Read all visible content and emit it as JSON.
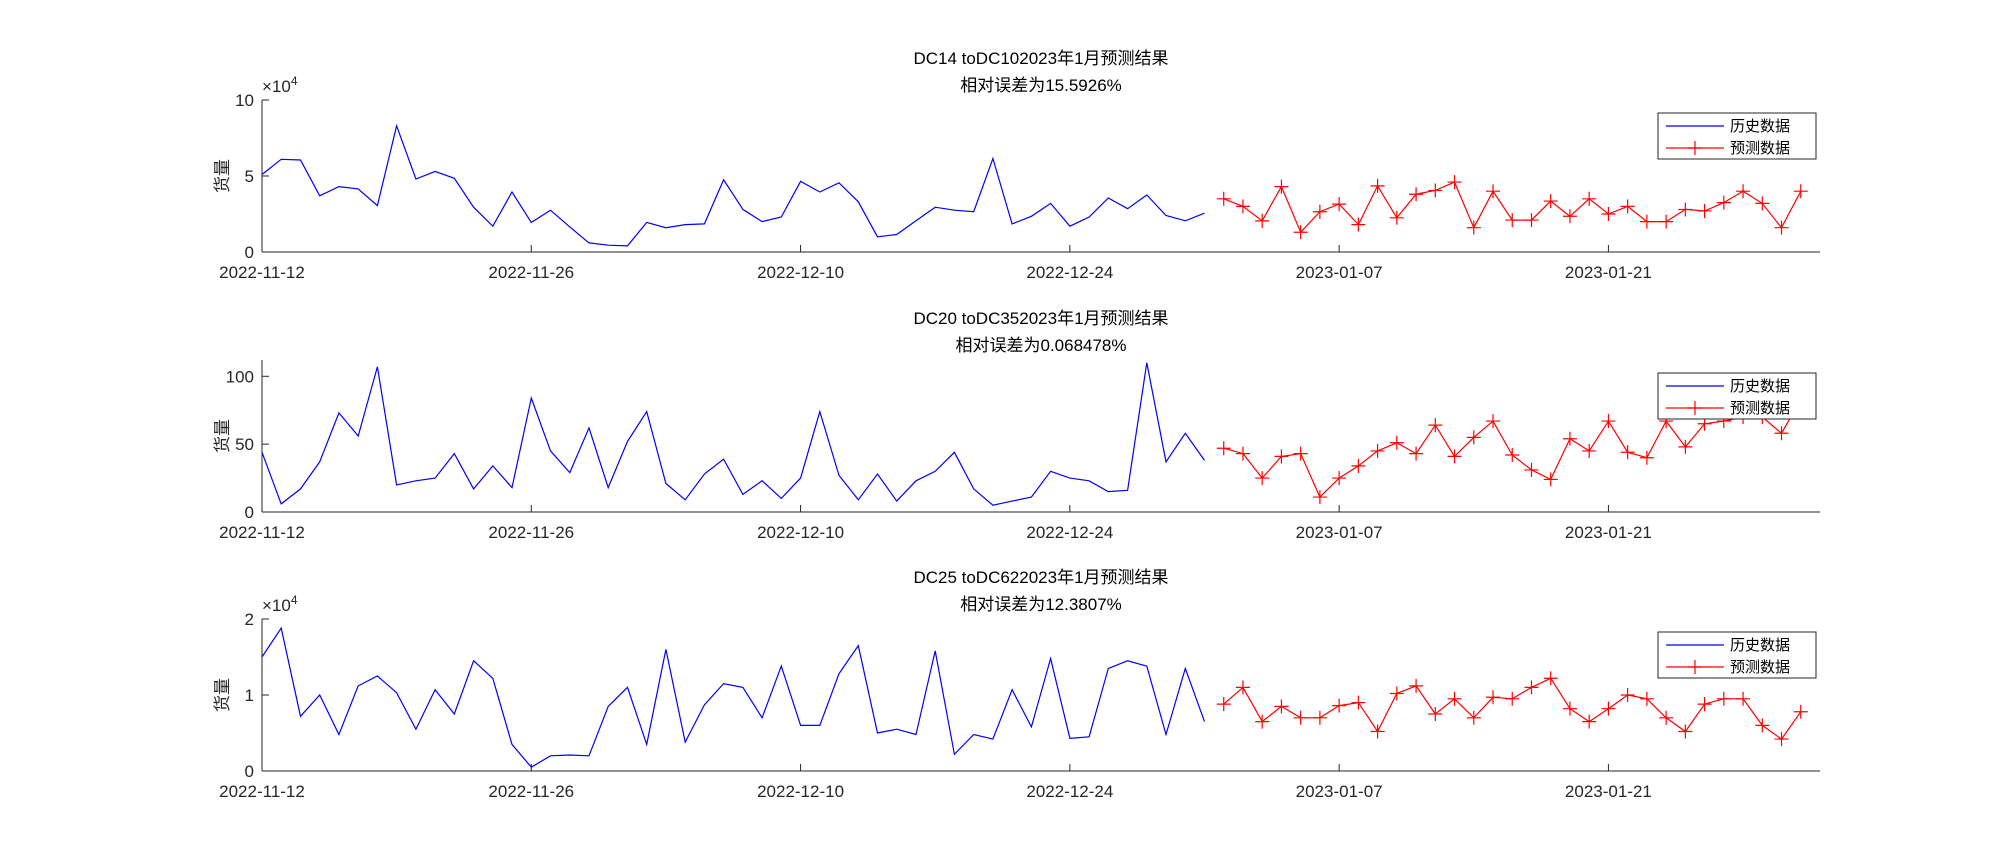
{
  "chart_data": [
    {
      "type": "line",
      "title": "DC14 toDC102023年1月预测结果",
      "subtitle": "相对误差为15.5926%",
      "ylabel": "货量",
      "exponent_label": "×10",
      "exponent_power": "4",
      "x_domain": [
        "2022-11-12",
        "2023-02-01"
      ],
      "xticks": [
        "2022-11-12",
        "2022-11-26",
        "2022-12-10",
        "2022-12-24",
        "2023-01-07",
        "2023-01-21"
      ],
      "yticks": [
        0,
        5,
        10
      ],
      "ylim": [
        0,
        10
      ],
      "legend": [
        "历史数据",
        "预测数据"
      ],
      "legend_position": "top-right",
      "series": [
        {
          "name": "历史数据",
          "color": "#0000ff",
          "marker": "none",
          "start": "2022-11-12",
          "values": [
            5.1,
            6.1,
            6.05,
            3.7,
            4.3,
            4.15,
            3.05,
            8.3,
            4.8,
            5.3,
            4.85,
            2.95,
            1.7,
            3.95,
            1.95,
            2.75,
            1.65,
            0.6,
            0.45,
            0.4,
            1.95,
            1.6,
            1.8,
            1.85,
            4.75,
            2.8,
            2.0,
            2.3,
            4.65,
            3.95,
            4.55,
            3.3,
            1.0,
            1.15,
            2.05,
            2.95,
            2.75,
            2.65,
            6.15,
            1.85,
            2.35,
            3.2,
            1.7,
            2.3,
            3.55,
            2.85,
            3.75,
            2.4,
            2.05,
            2.55
          ]
        },
        {
          "name": "预测数据",
          "color": "#ff0000",
          "marker": "+",
          "start": "2023-01-01",
          "values": [
            3.5,
            3.0,
            2.05,
            4.3,
            1.3,
            2.65,
            3.15,
            1.8,
            4.35,
            2.25,
            3.8,
            4.05,
            4.6,
            1.6,
            4.0,
            2.1,
            2.1,
            3.35,
            2.35,
            3.5,
            2.5,
            3.0,
            2.0,
            2.0,
            2.8,
            2.7,
            3.25,
            4.0,
            3.2,
            1.6,
            4.0
          ]
        }
      ]
    },
    {
      "type": "line",
      "title": "DC20 toDC352023年1月预测结果",
      "subtitle": "相对误差为0.068478%",
      "ylabel": "货量",
      "exponent_label": "",
      "exponent_power": "",
      "x_domain": [
        "2022-11-12",
        "2023-02-01"
      ],
      "xticks": [
        "2022-11-12",
        "2022-11-26",
        "2022-12-10",
        "2022-12-24",
        "2023-01-07",
        "2023-01-21"
      ],
      "yticks": [
        0,
        50,
        100
      ],
      "ylim": [
        0,
        112
      ],
      "legend": [
        "历史数据",
        "预测数据"
      ],
      "legend_position": "top-right",
      "series": [
        {
          "name": "历史数据",
          "color": "#0000ff",
          "marker": "none",
          "start": "2022-11-12",
          "values": [
            44,
            6,
            17,
            37,
            73,
            56,
            107,
            20,
            23,
            25,
            43,
            17,
            34,
            18,
            84,
            45,
            29,
            62,
            18,
            52,
            74,
            21,
            9,
            28,
            39,
            13,
            23,
            10,
            25,
            74,
            27,
            9,
            28,
            8,
            23,
            30,
            44,
            17,
            5,
            8,
            11,
            30,
            25,
            23,
            15,
            16,
            110,
            37,
            58,
            38
          ]
        },
        {
          "name": "预测数据",
          "color": "#ff0000",
          "marker": "+",
          "start": "2023-01-01",
          "values": [
            47,
            43,
            25,
            41,
            43,
            11,
            25,
            34,
            45,
            51,
            43,
            64,
            41,
            55,
            67,
            42,
            31,
            24,
            54,
            45,
            67,
            44,
            40,
            67,
            48,
            65,
            67,
            70,
            70,
            58,
            83
          ]
        }
      ]
    },
    {
      "type": "line",
      "title": "DC25 toDC622023年1月预测结果",
      "subtitle": "相对误差为12.3807%",
      "ylabel": "货量",
      "exponent_label": "×10",
      "exponent_power": "4",
      "x_domain": [
        "2022-11-12",
        "2023-02-01"
      ],
      "xticks": [
        "2022-11-12",
        "2022-11-26",
        "2022-12-10",
        "2022-12-24",
        "2023-01-07",
        "2023-01-21"
      ],
      "yticks": [
        0,
        1,
        2
      ],
      "ylim": [
        0,
        2
      ],
      "legend": [
        "历史数据",
        "预测数据"
      ],
      "legend_position": "top-right",
      "series": [
        {
          "name": "历史数据",
          "color": "#0000ff",
          "marker": "none",
          "start": "2022-11-12",
          "values": [
            1.5,
            1.88,
            0.72,
            1.0,
            0.48,
            1.12,
            1.25,
            1.03,
            0.55,
            1.07,
            0.75,
            1.45,
            1.22,
            0.35,
            0.05,
            0.2,
            0.21,
            0.2,
            0.85,
            1.1,
            0.35,
            1.6,
            0.38,
            0.87,
            1.15,
            1.1,
            0.7,
            1.38,
            0.6,
            0.6,
            1.28,
            1.65,
            0.5,
            0.55,
            0.48,
            1.58,
            0.22,
            0.48,
            0.42,
            1.07,
            0.58,
            1.48,
            0.43,
            0.45,
            1.35,
            1.45,
            1.38,
            0.48,
            1.35,
            0.65
          ]
        },
        {
          "name": "预测数据",
          "color": "#ff0000",
          "marker": "+",
          "start": "2023-01-01",
          "values": [
            0.88,
            1.1,
            0.65,
            0.85,
            0.7,
            0.7,
            0.86,
            0.9,
            0.52,
            1.02,
            1.12,
            0.75,
            0.95,
            0.7,
            0.97,
            0.95,
            1.1,
            1.22,
            0.82,
            0.65,
            0.82,
            1.0,
            0.95,
            0.7,
            0.52,
            0.88,
            0.95,
            0.95,
            0.6,
            0.42,
            0.78
          ]
        }
      ]
    }
  ]
}
